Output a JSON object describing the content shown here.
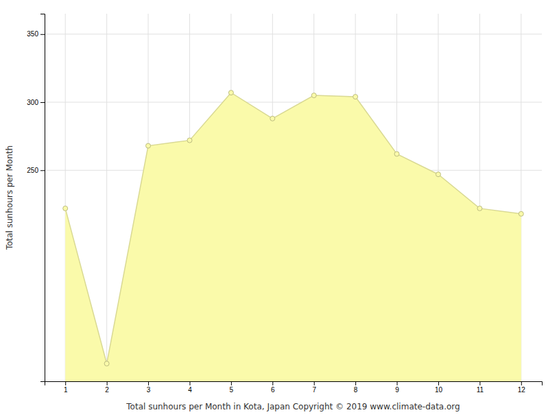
{
  "chart_data": {
    "type": "area",
    "x": [
      1,
      2,
      3,
      4,
      5,
      6,
      7,
      8,
      9,
      10,
      11,
      12
    ],
    "values": [
      222,
      108,
      268,
      272,
      307,
      288,
      305,
      304,
      262,
      247,
      222,
      218
    ],
    "color": "#FAFAAA",
    "marker": "circle",
    "xlabel": "Total sunhours per Month in Kota, Japan Copyright © 2019 www.climate-data.org",
    "ylabel": "Total sunhours per Month",
    "xlim": [
      0.5,
      12.5
    ],
    "xticks": [
      1,
      2,
      3,
      4,
      5,
      6,
      7,
      8,
      9,
      10,
      11,
      12
    ],
    "ylim": [
      95,
      365
    ],
    "yticks": [
      250,
      300,
      350
    ],
    "grid": true
  }
}
